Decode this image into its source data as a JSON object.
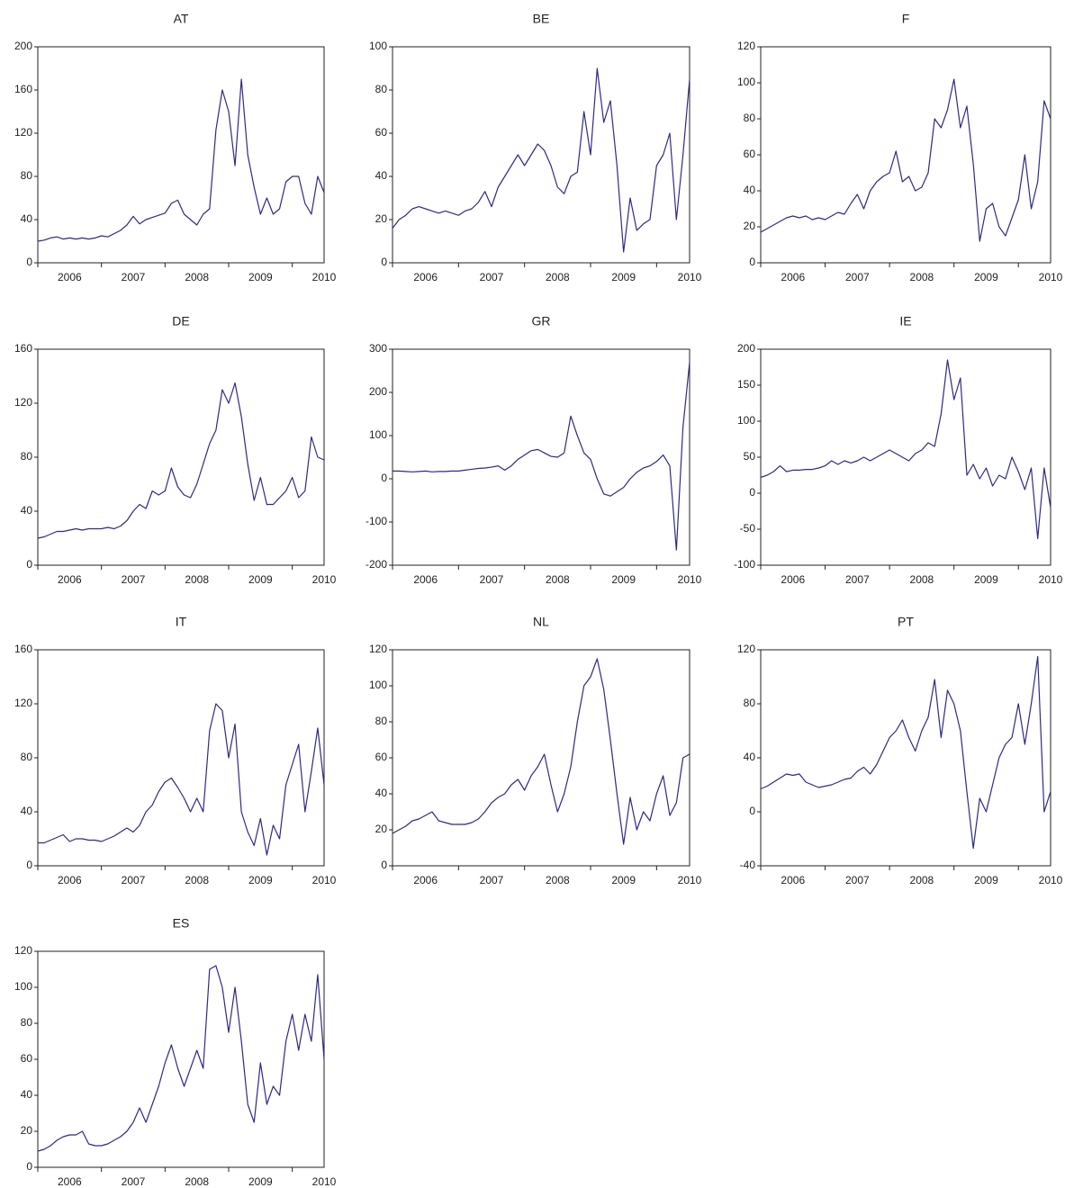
{
  "chart_data": [
    {
      "type": "line",
      "title": "AT",
      "color": "#2e2a84",
      "grid": false,
      "xlim": [
        2006,
        2010.5
      ],
      "xticks": [
        2006,
        2007,
        2008,
        2009,
        2010
      ],
      "ylim": [
        0,
        200
      ],
      "yticks": [
        0,
        40,
        80,
        120,
        160,
        200
      ],
      "x": [
        2006,
        2006.1,
        2006.2,
        2006.3,
        2006.4,
        2006.5,
        2006.6,
        2006.7,
        2006.8,
        2006.9,
        2007,
        2007.1,
        2007.2,
        2007.3,
        2007.4,
        2007.5,
        2007.6,
        2007.7,
        2007.8,
        2007.9,
        2008,
        2008.1,
        2008.2,
        2008.3,
        2008.4,
        2008.5,
        2008.6,
        2008.7,
        2008.8,
        2008.9,
        2009,
        2009.1,
        2009.2,
        2009.3,
        2009.4,
        2009.5,
        2009.6,
        2009.7,
        2009.8,
        2009.9,
        2010,
        2010.1,
        2010.2,
        2010.3,
        2010.4,
        2010.5
      ],
      "values": [
        20,
        21,
        23,
        24,
        22,
        23,
        22,
        23,
        22,
        23,
        25,
        24,
        27,
        30,
        35,
        43,
        36,
        40,
        42,
        44,
        46,
        55,
        58,
        45,
        40,
        35,
        45,
        50,
        123,
        160,
        140,
        90,
        170,
        100,
        70,
        45,
        60,
        45,
        50,
        75,
        80,
        80,
        55,
        45,
        80,
        65
      ]
    },
    {
      "type": "line",
      "title": "BE",
      "color": "#2e2a84",
      "grid": false,
      "xlim": [
        2006,
        2010.5
      ],
      "xticks": [
        2006,
        2007,
        2008,
        2009,
        2010
      ],
      "ylim": [
        0,
        100
      ],
      "yticks": [
        0,
        20,
        40,
        60,
        80,
        100
      ],
      "x": [
        2006,
        2006.1,
        2006.2,
        2006.3,
        2006.4,
        2006.5,
        2006.6,
        2006.7,
        2006.8,
        2006.9,
        2007,
        2007.1,
        2007.2,
        2007.3,
        2007.4,
        2007.5,
        2007.6,
        2007.7,
        2007.8,
        2007.9,
        2008,
        2008.1,
        2008.2,
        2008.3,
        2008.4,
        2008.5,
        2008.6,
        2008.7,
        2008.8,
        2008.9,
        2009,
        2009.1,
        2009.2,
        2009.3,
        2009.4,
        2009.5,
        2009.6,
        2009.7,
        2009.8,
        2009.9,
        2010,
        2010.1,
        2010.2,
        2010.3,
        2010.4,
        2010.5
      ],
      "values": [
        16,
        20,
        22,
        25,
        26,
        25,
        24,
        23,
        24,
        23,
        22,
        24,
        25,
        28,
        33,
        26,
        35,
        40,
        45,
        50,
        45,
        50,
        55,
        52,
        45,
        35,
        32,
        40,
        42,
        70,
        50,
        90,
        65,
        75,
        45,
        5,
        30,
        15,
        18,
        20,
        45,
        50,
        60,
        20,
        50,
        85
      ]
    },
    {
      "type": "line",
      "title": "F",
      "color": "#2e2a84",
      "grid": false,
      "xlim": [
        2006,
        2010.5
      ],
      "xticks": [
        2006,
        2007,
        2008,
        2009,
        2010
      ],
      "ylim": [
        0,
        120
      ],
      "yticks": [
        0,
        20,
        40,
        60,
        80,
        100,
        120
      ],
      "x": [
        2006,
        2006.1,
        2006.2,
        2006.3,
        2006.4,
        2006.5,
        2006.6,
        2006.7,
        2006.8,
        2006.9,
        2007,
        2007.1,
        2007.2,
        2007.3,
        2007.4,
        2007.5,
        2007.6,
        2007.7,
        2007.8,
        2007.9,
        2008,
        2008.1,
        2008.2,
        2008.3,
        2008.4,
        2008.5,
        2008.6,
        2008.7,
        2008.8,
        2008.9,
        2009,
        2009.1,
        2009.2,
        2009.3,
        2009.4,
        2009.5,
        2009.6,
        2009.7,
        2009.8,
        2009.9,
        2010,
        2010.1,
        2010.2,
        2010.3,
        2010.4,
        2010.5
      ],
      "values": [
        17,
        19,
        21,
        23,
        25,
        26,
        25,
        26,
        24,
        25,
        24,
        26,
        28,
        27,
        33,
        38,
        30,
        40,
        45,
        48,
        50,
        62,
        45,
        48,
        40,
        42,
        50,
        80,
        75,
        85,
        102,
        75,
        87,
        55,
        12,
        30,
        33,
        20,
        15,
        25,
        35,
        60,
        30,
        45,
        90,
        80
      ]
    },
    {
      "type": "line",
      "title": "DE",
      "color": "#2e2a84",
      "grid": false,
      "xlim": [
        2006,
        2010.5
      ],
      "xticks": [
        2006,
        2007,
        2008,
        2009,
        2010
      ],
      "ylim": [
        0,
        160
      ],
      "yticks": [
        0,
        40,
        80,
        120,
        160
      ],
      "x": [
        2006,
        2006.1,
        2006.2,
        2006.3,
        2006.4,
        2006.5,
        2006.6,
        2006.7,
        2006.8,
        2006.9,
        2007,
        2007.1,
        2007.2,
        2007.3,
        2007.4,
        2007.5,
        2007.6,
        2007.7,
        2007.8,
        2007.9,
        2008,
        2008.1,
        2008.2,
        2008.3,
        2008.4,
        2008.5,
        2008.6,
        2008.7,
        2008.8,
        2008.9,
        2009,
        2009.1,
        2009.2,
        2009.3,
        2009.4,
        2009.5,
        2009.6,
        2009.7,
        2009.8,
        2009.9,
        2010,
        2010.1,
        2010.2,
        2010.3,
        2010.4,
        2010.5
      ],
      "values": [
        20,
        21,
        23,
        25,
        25,
        26,
        27,
        26,
        27,
        27,
        27,
        28,
        27,
        29,
        33,
        40,
        45,
        42,
        55,
        52,
        55,
        72,
        58,
        52,
        50,
        60,
        75,
        90,
        100,
        130,
        120,
        135,
        110,
        75,
        48,
        65,
        45,
        45,
        50,
        55,
        65,
        50,
        55,
        95,
        80,
        78
      ]
    },
    {
      "type": "line",
      "title": "GR",
      "color": "#2e2a84",
      "grid": false,
      "xlim": [
        2006,
        2010.5
      ],
      "xticks": [
        2006,
        2007,
        2008,
        2009,
        2010
      ],
      "ylim": [
        -200,
        300
      ],
      "yticks": [
        -200,
        -100,
        0,
        100,
        200,
        300
      ],
      "x": [
        2006,
        2006.1,
        2006.2,
        2006.3,
        2006.4,
        2006.5,
        2006.6,
        2006.7,
        2006.8,
        2006.9,
        2007,
        2007.1,
        2007.2,
        2007.3,
        2007.4,
        2007.5,
        2007.6,
        2007.7,
        2007.8,
        2007.9,
        2008,
        2008.1,
        2008.2,
        2008.3,
        2008.4,
        2008.5,
        2008.6,
        2008.7,
        2008.8,
        2008.9,
        2009,
        2009.1,
        2009.2,
        2009.3,
        2009.4,
        2009.5,
        2009.6,
        2009.7,
        2009.8,
        2009.9,
        2010,
        2010.1,
        2010.2,
        2010.3,
        2010.4,
        2010.5
      ],
      "values": [
        18,
        18,
        17,
        16,
        17,
        18,
        16,
        17,
        17,
        18,
        18,
        20,
        22,
        24,
        25,
        27,
        30,
        20,
        30,
        45,
        55,
        65,
        68,
        60,
        52,
        50,
        60,
        145,
        100,
        60,
        45,
        0,
        -35,
        -40,
        -30,
        -20,
        0,
        15,
        25,
        30,
        40,
        55,
        30,
        -165,
        120,
        270
      ]
    },
    {
      "type": "line",
      "title": "IE",
      "color": "#2e2a84",
      "grid": false,
      "xlim": [
        2006,
        2010.5
      ],
      "xticks": [
        2006,
        2007,
        2008,
        2009,
        2010
      ],
      "ylim": [
        -100,
        200
      ],
      "yticks": [
        -100,
        -50,
        0,
        50,
        100,
        150,
        200
      ],
      "x": [
        2006,
        2006.1,
        2006.2,
        2006.3,
        2006.4,
        2006.5,
        2006.6,
        2006.7,
        2006.8,
        2006.9,
        2007,
        2007.1,
        2007.2,
        2007.3,
        2007.4,
        2007.5,
        2007.6,
        2007.7,
        2007.8,
        2007.9,
        2008,
        2008.1,
        2008.2,
        2008.3,
        2008.4,
        2008.5,
        2008.6,
        2008.7,
        2008.8,
        2008.9,
        2009,
        2009.1,
        2009.2,
        2009.3,
        2009.4,
        2009.5,
        2009.6,
        2009.7,
        2009.8,
        2009.9,
        2010,
        2010.1,
        2010.2,
        2010.3,
        2010.4,
        2010.5
      ],
      "values": [
        22,
        25,
        30,
        38,
        30,
        32,
        32,
        33,
        33,
        35,
        38,
        45,
        40,
        45,
        42,
        45,
        50,
        45,
        50,
        55,
        60,
        55,
        50,
        45,
        55,
        60,
        70,
        65,
        110,
        185,
        130,
        160,
        25,
        40,
        20,
        35,
        10,
        25,
        20,
        50,
        30,
        5,
        35,
        -63,
        35,
        -20
      ]
    },
    {
      "type": "line",
      "title": "IT",
      "color": "#2e2a84",
      "grid": false,
      "xlim": [
        2006,
        2010.5
      ],
      "xticks": [
        2006,
        2007,
        2008,
        2009,
        2010
      ],
      "ylim": [
        0,
        160
      ],
      "yticks": [
        0,
        40,
        80,
        120,
        160
      ],
      "x": [
        2006,
        2006.1,
        2006.2,
        2006.3,
        2006.4,
        2006.5,
        2006.6,
        2006.7,
        2006.8,
        2006.9,
        2007,
        2007.1,
        2007.2,
        2007.3,
        2007.4,
        2007.5,
        2007.6,
        2007.7,
        2007.8,
        2007.9,
        2008,
        2008.1,
        2008.2,
        2008.3,
        2008.4,
        2008.5,
        2008.6,
        2008.7,
        2008.8,
        2008.9,
        2009,
        2009.1,
        2009.2,
        2009.3,
        2009.4,
        2009.5,
        2009.6,
        2009.7,
        2009.8,
        2009.9,
        2010,
        2010.1,
        2010.2,
        2010.3,
        2010.4,
        2010.5
      ],
      "values": [
        17,
        17,
        19,
        21,
        23,
        18,
        20,
        20,
        19,
        19,
        18,
        20,
        22,
        25,
        28,
        25,
        30,
        40,
        45,
        55,
        62,
        65,
        58,
        50,
        40,
        50,
        40,
        100,
        120,
        115,
        80,
        105,
        40,
        25,
        15,
        35,
        8,
        30,
        20,
        60,
        75,
        90,
        40,
        70,
        102,
        60
      ]
    },
    {
      "type": "line",
      "title": "NL",
      "color": "#2e2a84",
      "grid": false,
      "xlim": [
        2006,
        2010.5
      ],
      "xticks": [
        2006,
        2007,
        2008,
        2009,
        2010
      ],
      "ylim": [
        0,
        120
      ],
      "yticks": [
        0,
        20,
        40,
        60,
        80,
        100,
        120
      ],
      "x": [
        2006,
        2006.1,
        2006.2,
        2006.3,
        2006.4,
        2006.5,
        2006.6,
        2006.7,
        2006.8,
        2006.9,
        2007,
        2007.1,
        2007.2,
        2007.3,
        2007.4,
        2007.5,
        2007.6,
        2007.7,
        2007.8,
        2007.9,
        2008,
        2008.1,
        2008.2,
        2008.3,
        2008.4,
        2008.5,
        2008.6,
        2008.7,
        2008.8,
        2008.9,
        2009,
        2009.1,
        2009.2,
        2009.3,
        2009.4,
        2009.5,
        2009.6,
        2009.7,
        2009.8,
        2009.9,
        2010,
        2010.1,
        2010.2,
        2010.3,
        2010.4,
        2010.5
      ],
      "values": [
        18,
        20,
        22,
        25,
        26,
        28,
        30,
        25,
        24,
        23,
        23,
        23,
        24,
        26,
        30,
        35,
        38,
        40,
        45,
        48,
        42,
        50,
        55,
        62,
        45,
        30,
        40,
        55,
        80,
        100,
        105,
        115,
        98,
        70,
        40,
        12,
        38,
        20,
        30,
        25,
        40,
        50,
        28,
        35,
        60,
        62
      ]
    },
    {
      "type": "line",
      "title": "PT",
      "color": "#2e2a84",
      "grid": false,
      "xlim": [
        2006,
        2010.5
      ],
      "xticks": [
        2006,
        2007,
        2008,
        2009,
        2010
      ],
      "ylim": [
        -40,
        120
      ],
      "yticks": [
        -40,
        0,
        40,
        80,
        120
      ],
      "x": [
        2006,
        2006.1,
        2006.2,
        2006.3,
        2006.4,
        2006.5,
        2006.6,
        2006.7,
        2006.8,
        2006.9,
        2007,
        2007.1,
        2007.2,
        2007.3,
        2007.4,
        2007.5,
        2007.6,
        2007.7,
        2007.8,
        2007.9,
        2008,
        2008.1,
        2008.2,
        2008.3,
        2008.4,
        2008.5,
        2008.6,
        2008.7,
        2008.8,
        2008.9,
        2009,
        2009.1,
        2009.2,
        2009.3,
        2009.4,
        2009.5,
        2009.6,
        2009.7,
        2009.8,
        2009.9,
        2010,
        2010.1,
        2010.2,
        2010.3,
        2010.4,
        2010.5
      ],
      "values": [
        17,
        19,
        22,
        25,
        28,
        27,
        28,
        22,
        20,
        18,
        19,
        20,
        22,
        24,
        25,
        30,
        33,
        28,
        35,
        45,
        55,
        60,
        68,
        55,
        45,
        60,
        70,
        98,
        55,
        90,
        80,
        60,
        15,
        -27,
        10,
        0,
        20,
        40,
        50,
        55,
        80,
        50,
        80,
        115,
        0,
        15
      ]
    },
    {
      "type": "line",
      "title": "ES",
      "color": "#2e2a84",
      "grid": false,
      "xlim": [
        2006,
        2010.5
      ],
      "xticks": [
        2006,
        2007,
        2008,
        2009,
        2010
      ],
      "ylim": [
        0,
        120
      ],
      "yticks": [
        0,
        20,
        40,
        60,
        80,
        100,
        120
      ],
      "x": [
        2006,
        2006.1,
        2006.2,
        2006.3,
        2006.4,
        2006.5,
        2006.6,
        2006.7,
        2006.8,
        2006.9,
        2007,
        2007.1,
        2007.2,
        2007.3,
        2007.4,
        2007.5,
        2007.6,
        2007.7,
        2007.8,
        2007.9,
        2008,
        2008.1,
        2008.2,
        2008.3,
        2008.4,
        2008.5,
        2008.6,
        2008.7,
        2008.8,
        2008.9,
        2009,
        2009.1,
        2009.2,
        2009.3,
        2009.4,
        2009.5,
        2009.6,
        2009.7,
        2009.8,
        2009.9,
        2010,
        2010.1,
        2010.2,
        2010.3,
        2010.4,
        2010.5
      ],
      "values": [
        9,
        10,
        12,
        15,
        17,
        18,
        18,
        20,
        13,
        12,
        12,
        13,
        15,
        17,
        20,
        25,
        33,
        25,
        35,
        45,
        58,
        68,
        55,
        45,
        55,
        65,
        55,
        110,
        112,
        100,
        75,
        100,
        70,
        35,
        25,
        58,
        35,
        45,
        40,
        70,
        85,
        65,
        85,
        70,
        107,
        60
      ]
    }
  ]
}
